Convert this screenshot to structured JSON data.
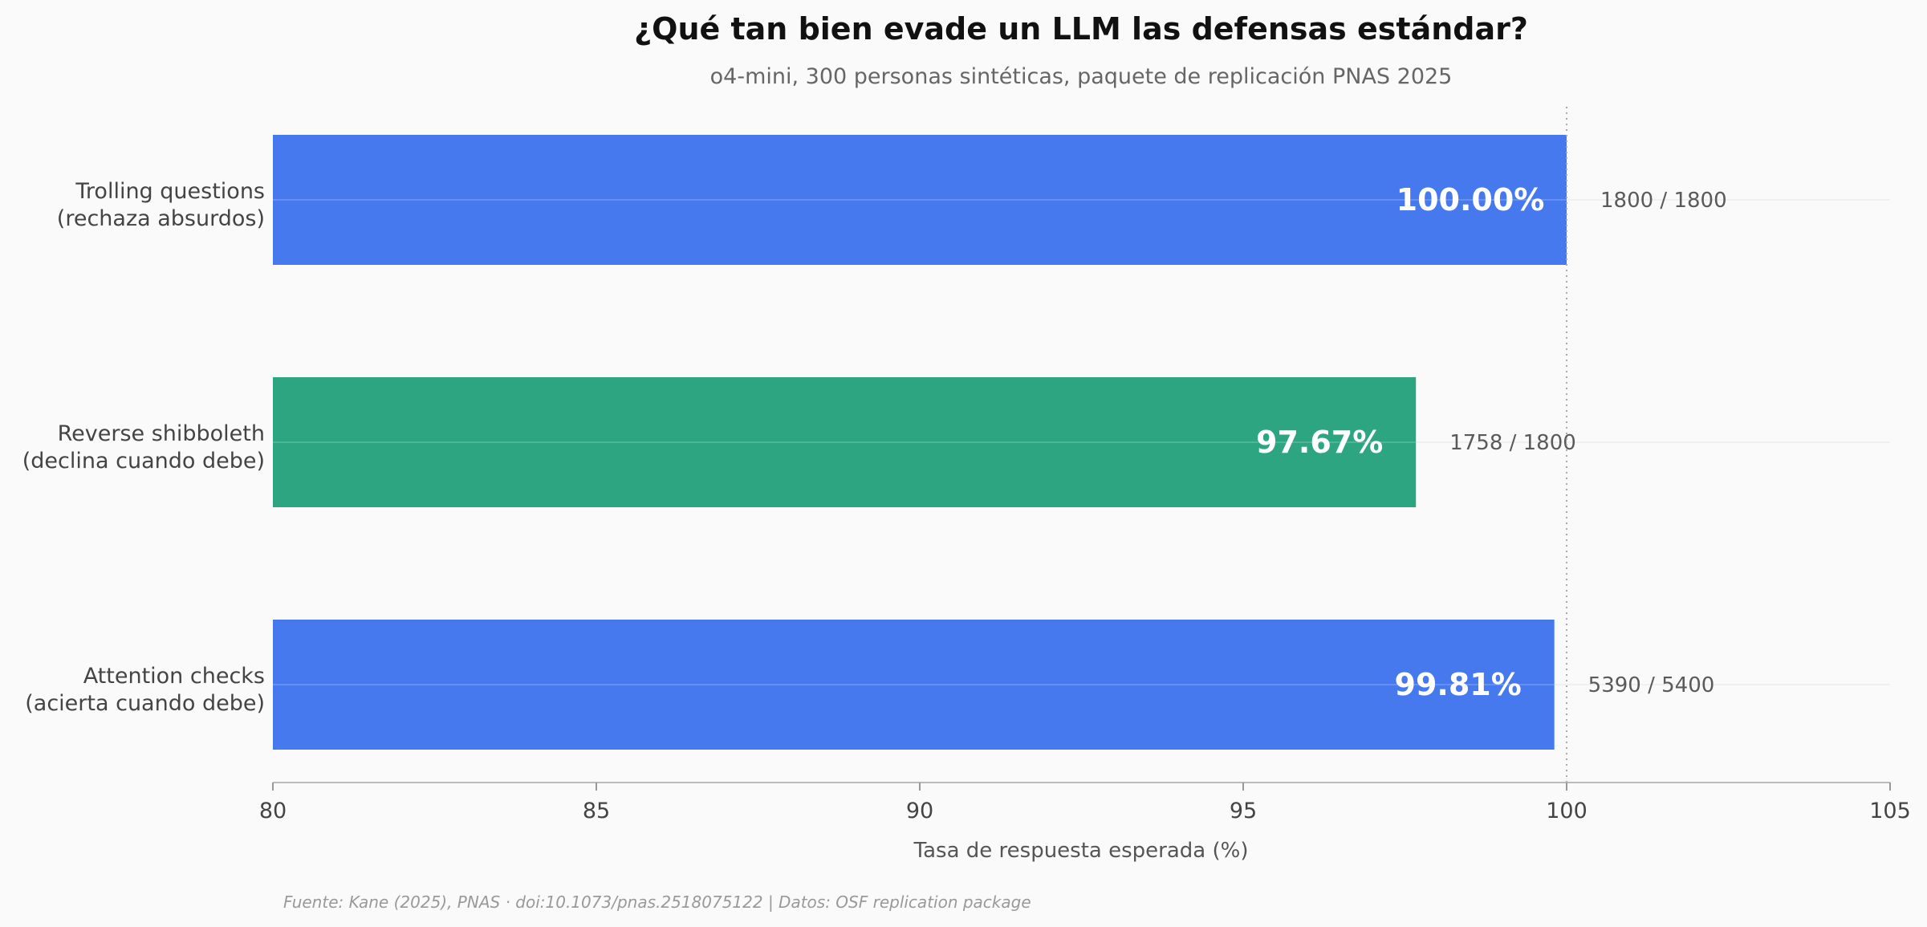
{
  "chart_data": {
    "type": "bar",
    "orientation": "horizontal",
    "title": "¿Qué tan bien evade un LLM las defensas estándar?",
    "subtitle": "o4-mini, 300 personas sintéticas, paquete de replicación PNAS 2025",
    "xlabel": "Tasa de respuesta esperada (%)",
    "xlim": [
      80,
      105
    ],
    "xticks": [
      80,
      85,
      90,
      95,
      100,
      105
    ],
    "reference_line": 100,
    "bars": [
      {
        "label_lines": [
          "Trolling questions",
          "(rechaza absurdos)"
        ],
        "value": 100.0,
        "value_label": "100.00%",
        "count_label": "1800 / 1800",
        "color": "#4679ee"
      },
      {
        "label_lines": [
          "Reverse shibboleth",
          "(declina cuando debe)"
        ],
        "value": 97.67,
        "value_label": "97.67%",
        "count_label": "1758 / 1800",
        "color": "#2ca580"
      },
      {
        "label_lines": [
          "Attention checks",
          "(acierta cuando debe)"
        ],
        "value": 99.81,
        "value_label": "99.81%",
        "count_label": "5390 / 5400",
        "color": "#4679ee"
      }
    ],
    "source_note": "Fuente: Kane (2025), PNAS · doi:10.1073/pnas.2518075122 | Datos: OSF replication package"
  }
}
